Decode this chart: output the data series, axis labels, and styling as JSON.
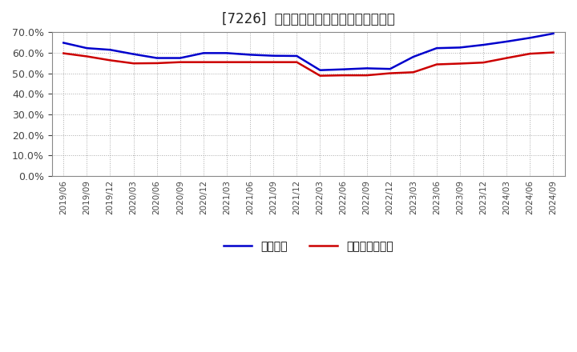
{
  "title": "[7226]  固定比率、固定長期適合率の推移",
  "title_fontsize": 12,
  "background_color": "#ffffff",
  "grid_color": "#aaaaaa",
  "ylim": [
    0.0,
    0.7
  ],
  "yticks": [
    0.0,
    0.1,
    0.2,
    0.3,
    0.4,
    0.5,
    0.6,
    0.7
  ],
  "xtick_labels": [
    "2019/06",
    "2019/09",
    "2019/12",
    "2020/03",
    "2020/06",
    "2020/09",
    "2020/12",
    "2021/03",
    "2021/06",
    "2021/09",
    "2021/12",
    "2022/03",
    "2022/06",
    "2022/09",
    "2022/12",
    "2023/03",
    "2023/06",
    "2023/09",
    "2023/12",
    "2024/03",
    "2024/06",
    "2024/09"
  ],
  "series1_label": "固定比率",
  "series1_color": "#0000cc",
  "series1_y": [
    0.648,
    0.622,
    0.614,
    0.593,
    0.574,
    0.574,
    0.598,
    0.598,
    0.59,
    0.585,
    0.584,
    0.515,
    0.519,
    0.524,
    0.521,
    0.58,
    0.622,
    0.625,
    0.638,
    0.654,
    0.672,
    0.693
  ],
  "series2_label": "固定長期適合率",
  "series2_color": "#cc0000",
  "series2_y": [
    0.597,
    0.582,
    0.563,
    0.548,
    0.549,
    0.554,
    0.554,
    0.554,
    0.554,
    0.554,
    0.554,
    0.488,
    0.49,
    0.49,
    0.5,
    0.505,
    0.543,
    0.547,
    0.552,
    0.574,
    0.595,
    0.601
  ],
  "line_width": 1.8
}
